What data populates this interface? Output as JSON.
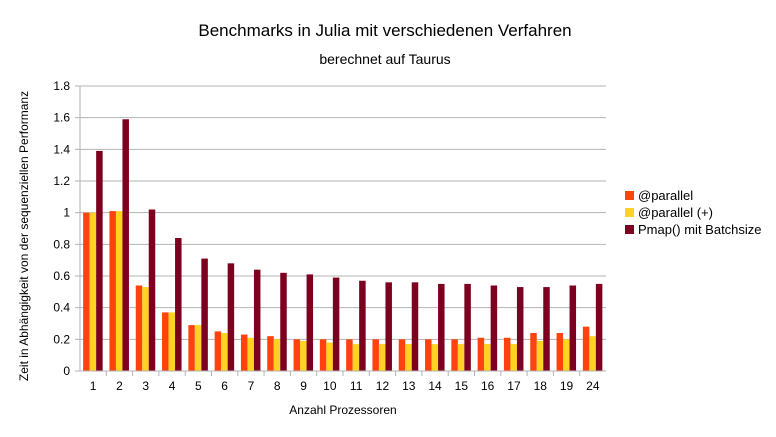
{
  "chart_data": {
    "type": "bar",
    "title": "Benchmarks in Julia mit verschiedenen Verfahren",
    "subtitle": "berechnet auf Taurus",
    "xlabel": "Anzahl Prozessoren",
    "ylabel": "Zeit in Abhängigkeit von der sequenziellen Performanz",
    "ylim": [
      0,
      1.8
    ],
    "yticks": [
      "0",
      "0.2",
      "0.4",
      "0.6",
      "0.8",
      "1",
      "1.2",
      "1.4",
      "1.6",
      "1.8"
    ],
    "grid": true,
    "legend_position": "right",
    "categories": [
      "1",
      "2",
      "3",
      "4",
      "5",
      "6",
      "7",
      "8",
      "9",
      "10",
      "11",
      "12",
      "13",
      "14",
      "15",
      "16",
      "17",
      "18",
      "19",
      "24"
    ],
    "series": [
      {
        "name": "@parallel",
        "color": "#ff420e",
        "values": [
          1.0,
          1.01,
          0.54,
          0.37,
          0.29,
          0.25,
          0.23,
          0.22,
          0.2,
          0.2,
          0.2,
          0.2,
          0.2,
          0.2,
          0.2,
          0.21,
          0.21,
          0.24,
          0.24,
          0.28
        ]
      },
      {
        "name": "@parallel (+)",
        "color": "#ffd320",
        "values": [
          1.0,
          1.01,
          0.53,
          0.37,
          0.29,
          0.24,
          0.21,
          0.2,
          0.19,
          0.18,
          0.17,
          0.17,
          0.17,
          0.17,
          0.17,
          0.17,
          0.17,
          0.19,
          0.2,
          0.22
        ]
      },
      {
        "name": "Pmap() mit Batchsize",
        "color": "#7e0021",
        "values": [
          1.39,
          1.59,
          1.02,
          0.84,
          0.71,
          0.68,
          0.64,
          0.62,
          0.61,
          0.59,
          0.57,
          0.56,
          0.56,
          0.55,
          0.55,
          0.54,
          0.53,
          0.53,
          0.54,
          0.55
        ]
      }
    ]
  }
}
